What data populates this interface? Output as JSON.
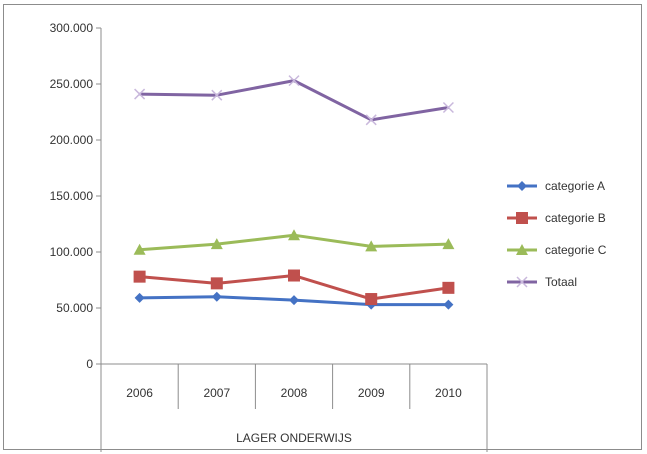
{
  "chart_data": {
    "type": "line",
    "title": "",
    "xlabel": "",
    "ylabel": "",
    "categories": [
      "2006",
      "2007",
      "2008",
      "2009",
      "2010"
    ],
    "group_label": "LAGER ONDERWIJS",
    "ylim": [
      0,
      300000
    ],
    "ytick_values": [
      0,
      50000,
      100000,
      150000,
      200000,
      250000,
      300000
    ],
    "ytick_labels": [
      "0",
      "50.000",
      "100.000",
      "150.000",
      "200.000",
      "250.000",
      "300.000"
    ],
    "grid": false,
    "legend_position": "right",
    "series": [
      {
        "name": "categorie A",
        "values": [
          59000,
          60000,
          57000,
          53000,
          53000
        ],
        "color": "#4472c4",
        "marker": "diamond"
      },
      {
        "name": "categorie B",
        "values": [
          78000,
          72000,
          79000,
          58000,
          68000
        ],
        "color": "#c0504d",
        "marker": "square"
      },
      {
        "name": "categorie C",
        "values": [
          102000,
          107000,
          115000,
          105000,
          107000
        ],
        "color": "#9bbb59",
        "marker": "triangle"
      },
      {
        "name": "Totaal",
        "values": [
          241000,
          240000,
          253000,
          218000,
          229000
        ],
        "color": "#8064a2",
        "marker": "x"
      }
    ]
  }
}
